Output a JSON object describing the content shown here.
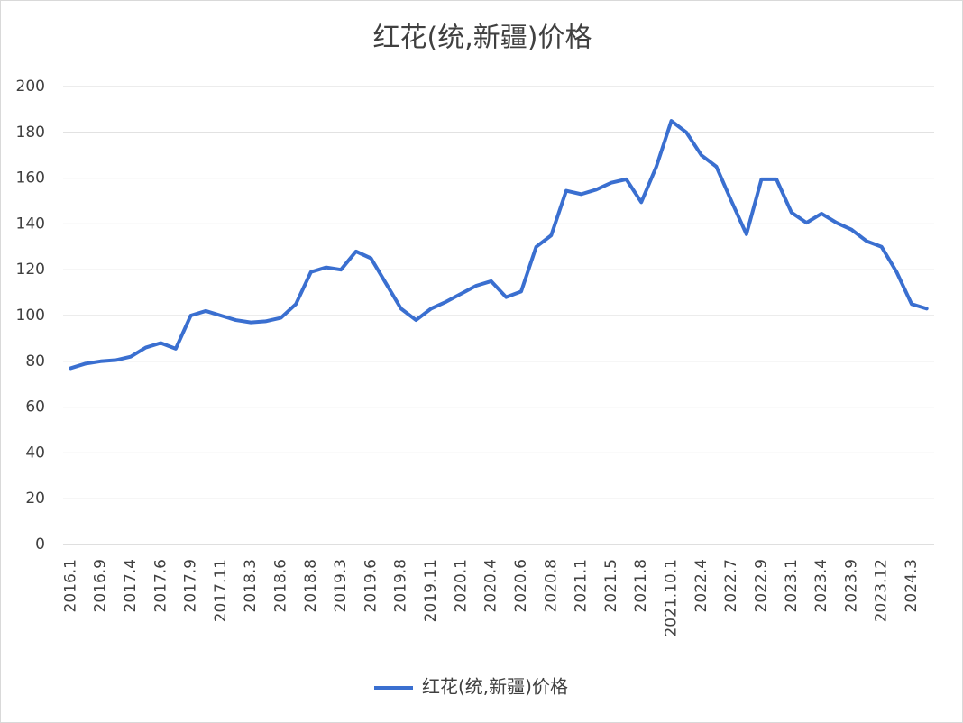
{
  "chart_data": {
    "type": "line",
    "title": "红花(统,新疆)价格",
    "categories": [
      "2016.1",
      null,
      "2016.9",
      null,
      "2017.4",
      null,
      "2017.6",
      null,
      "2017.9",
      null,
      "2017.11",
      null,
      "2018.3",
      null,
      "2018.6",
      null,
      "2018.8",
      null,
      "2019.3",
      null,
      "2019.6",
      null,
      "2019.8",
      null,
      "2019.11",
      null,
      "2020.1",
      null,
      "2020.4",
      null,
      "2020.6",
      null,
      "2020.8",
      null,
      "2021.1",
      null,
      "2021.5",
      null,
      "2021.8",
      null,
      "2021.10.1",
      null,
      "2022.4",
      null,
      "2022.7",
      null,
      "2022.9",
      null,
      "2023.1",
      null,
      "2023.4",
      null,
      "2023.9",
      null,
      "2023.12",
      null,
      "2024.3",
      null
    ],
    "series": [
      {
        "name": "红花(统,新疆)价格",
        "color": "#3a6fd0",
        "values": [
          77,
          79,
          80,
          80.5,
          82,
          86,
          88,
          85.5,
          100,
          102,
          100,
          98,
          97,
          97.5,
          99,
          105,
          119,
          121,
          120,
          128,
          125,
          114,
          103,
          98,
          103,
          106,
          109.5,
          113,
          115,
          108,
          110.5,
          130,
          135,
          154.5,
          153,
          155,
          158,
          159.5,
          149.5,
          165,
          185,
          180,
          170,
          165,
          150,
          135.5,
          159.5,
          159.5,
          145,
          140.5,
          144.5,
          140.5,
          137.5,
          132.5,
          130,
          119,
          105,
          103
        ]
      }
    ],
    "ylim": [
      0,
      200
    ],
    "yticks": [
      0,
      20,
      40,
      60,
      80,
      100,
      120,
      140,
      160,
      180,
      200
    ],
    "grid": true,
    "legend": "bottom"
  }
}
